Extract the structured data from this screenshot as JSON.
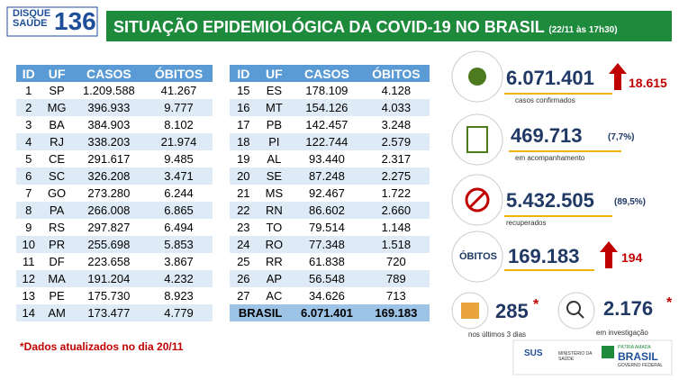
{
  "header": {
    "logo_line1": "DISQUE",
    "logo_line2": "SAÚDE",
    "logo_number": "136",
    "title": "SITUAÇÃO EPIDEMIOLÓGICA DA COVID-19 NO BRASIL",
    "date": "(22/11 às 17h30)"
  },
  "table_left": {
    "columns": [
      "ID",
      "UF",
      "CASOS",
      "ÓBITOS"
    ],
    "rows": [
      [
        "1",
        "SP",
        "1.209.588",
        "41.267"
      ],
      [
        "2",
        "MG",
        "396.933",
        "9.777"
      ],
      [
        "3",
        "BA",
        "384.903",
        "8.102"
      ],
      [
        "4",
        "RJ",
        "338.203",
        "21.974"
      ],
      [
        "5",
        "CE",
        "291.617",
        "9.485"
      ],
      [
        "6",
        "SC",
        "326.208",
        "3.471"
      ],
      [
        "7",
        "GO",
        "273.280",
        "6.244"
      ],
      [
        "8",
        "PA",
        "266.008",
        "6.865"
      ],
      [
        "9",
        "RS",
        "297.827",
        "6.494"
      ],
      [
        "10",
        "PR",
        "255.698",
        "5.853"
      ],
      [
        "11",
        "DF",
        "223.658",
        "3.867"
      ],
      [
        "12",
        "MA",
        "191.204",
        "4.232"
      ],
      [
        "13",
        "PE",
        "175.730",
        "8.923"
      ],
      [
        "14",
        "AM",
        "173.477",
        "4.779"
      ]
    ]
  },
  "table_right": {
    "columns": [
      "ID",
      "UF",
      "CASOS",
      "ÓBITOS"
    ],
    "rows": [
      [
        "15",
        "ES",
        "178.109",
        "4.128"
      ],
      [
        "16",
        "MT",
        "154.126",
        "4.033"
      ],
      [
        "17",
        "PB",
        "142.457",
        "3.248"
      ],
      [
        "18",
        "PI",
        "122.744",
        "2.579"
      ],
      [
        "19",
        "AL",
        "93.440",
        "2.317"
      ],
      [
        "20",
        "SE",
        "87.248",
        "2.275"
      ],
      [
        "21",
        "MS",
        "92.467",
        "1.722"
      ],
      [
        "22",
        "RN",
        "86.602",
        "2.660"
      ],
      [
        "23",
        "TO",
        "79.514",
        "1.148"
      ],
      [
        "24",
        "RO",
        "77.348",
        "1.518"
      ],
      [
        "25",
        "RR",
        "61.838",
        "720"
      ],
      [
        "26",
        "AP",
        "56.548",
        "789"
      ],
      [
        "27",
        "AC",
        "34.626",
        "713"
      ]
    ],
    "total": [
      "BRASIL",
      "6.071.401",
      "169.183"
    ]
  },
  "footnote": "*Dados atualizados no dia  20/11",
  "cards": {
    "confirmed": {
      "value": "6.071.401",
      "delta": "18.615",
      "label": "casos confirmados"
    },
    "monitoring": {
      "value": "469.713",
      "pct": "(7,7%)",
      "label": "em acompanhamento"
    },
    "recovered": {
      "value": "5.432.505",
      "pct": "(89,5%)",
      "label": "recuperados"
    },
    "deaths": {
      "label": "ÓBITOS",
      "value": "169.183",
      "delta": "194"
    },
    "recent": {
      "value": "285",
      "star": "*",
      "label": "nos últimos 3 dias"
    },
    "investigation": {
      "value": "2.176",
      "star": "*",
      "label": "em investigação"
    }
  },
  "footer": {
    "sus": "SUS",
    "ministry": "MINISTÉRIO DA SAÚDE",
    "patria": "PÁTRIA AMADA",
    "brasil": "BRASIL",
    "gov": "GOVERNO FEDERAL"
  }
}
